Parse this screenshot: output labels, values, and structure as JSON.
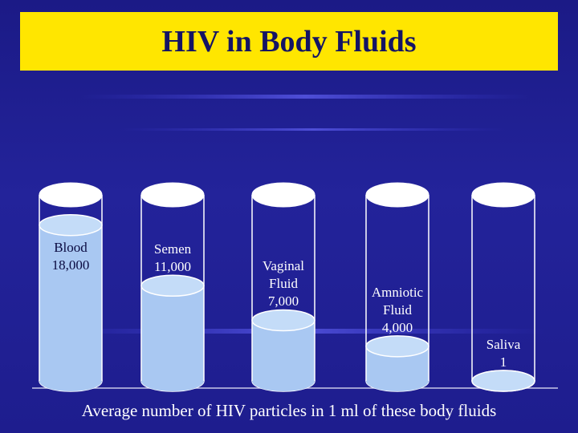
{
  "chart_data": {
    "type": "cylinder",
    "title": "HIV in Body Fluids",
    "caption": "Average number of HIV particles in 1 ml of these body fluids",
    "categories": [
      "Blood",
      "Semen",
      "Vaginal Fluid",
      "Amniotic Fluid",
      "Saliva"
    ],
    "values": [
      18000,
      11000,
      7000,
      4000,
      1
    ],
    "value_labels": [
      "18,000",
      "11,000",
      "7,000",
      "4,000",
      "1"
    ],
    "ylim": [
      0,
      21500
    ],
    "color": "#a9c8f2"
  }
}
